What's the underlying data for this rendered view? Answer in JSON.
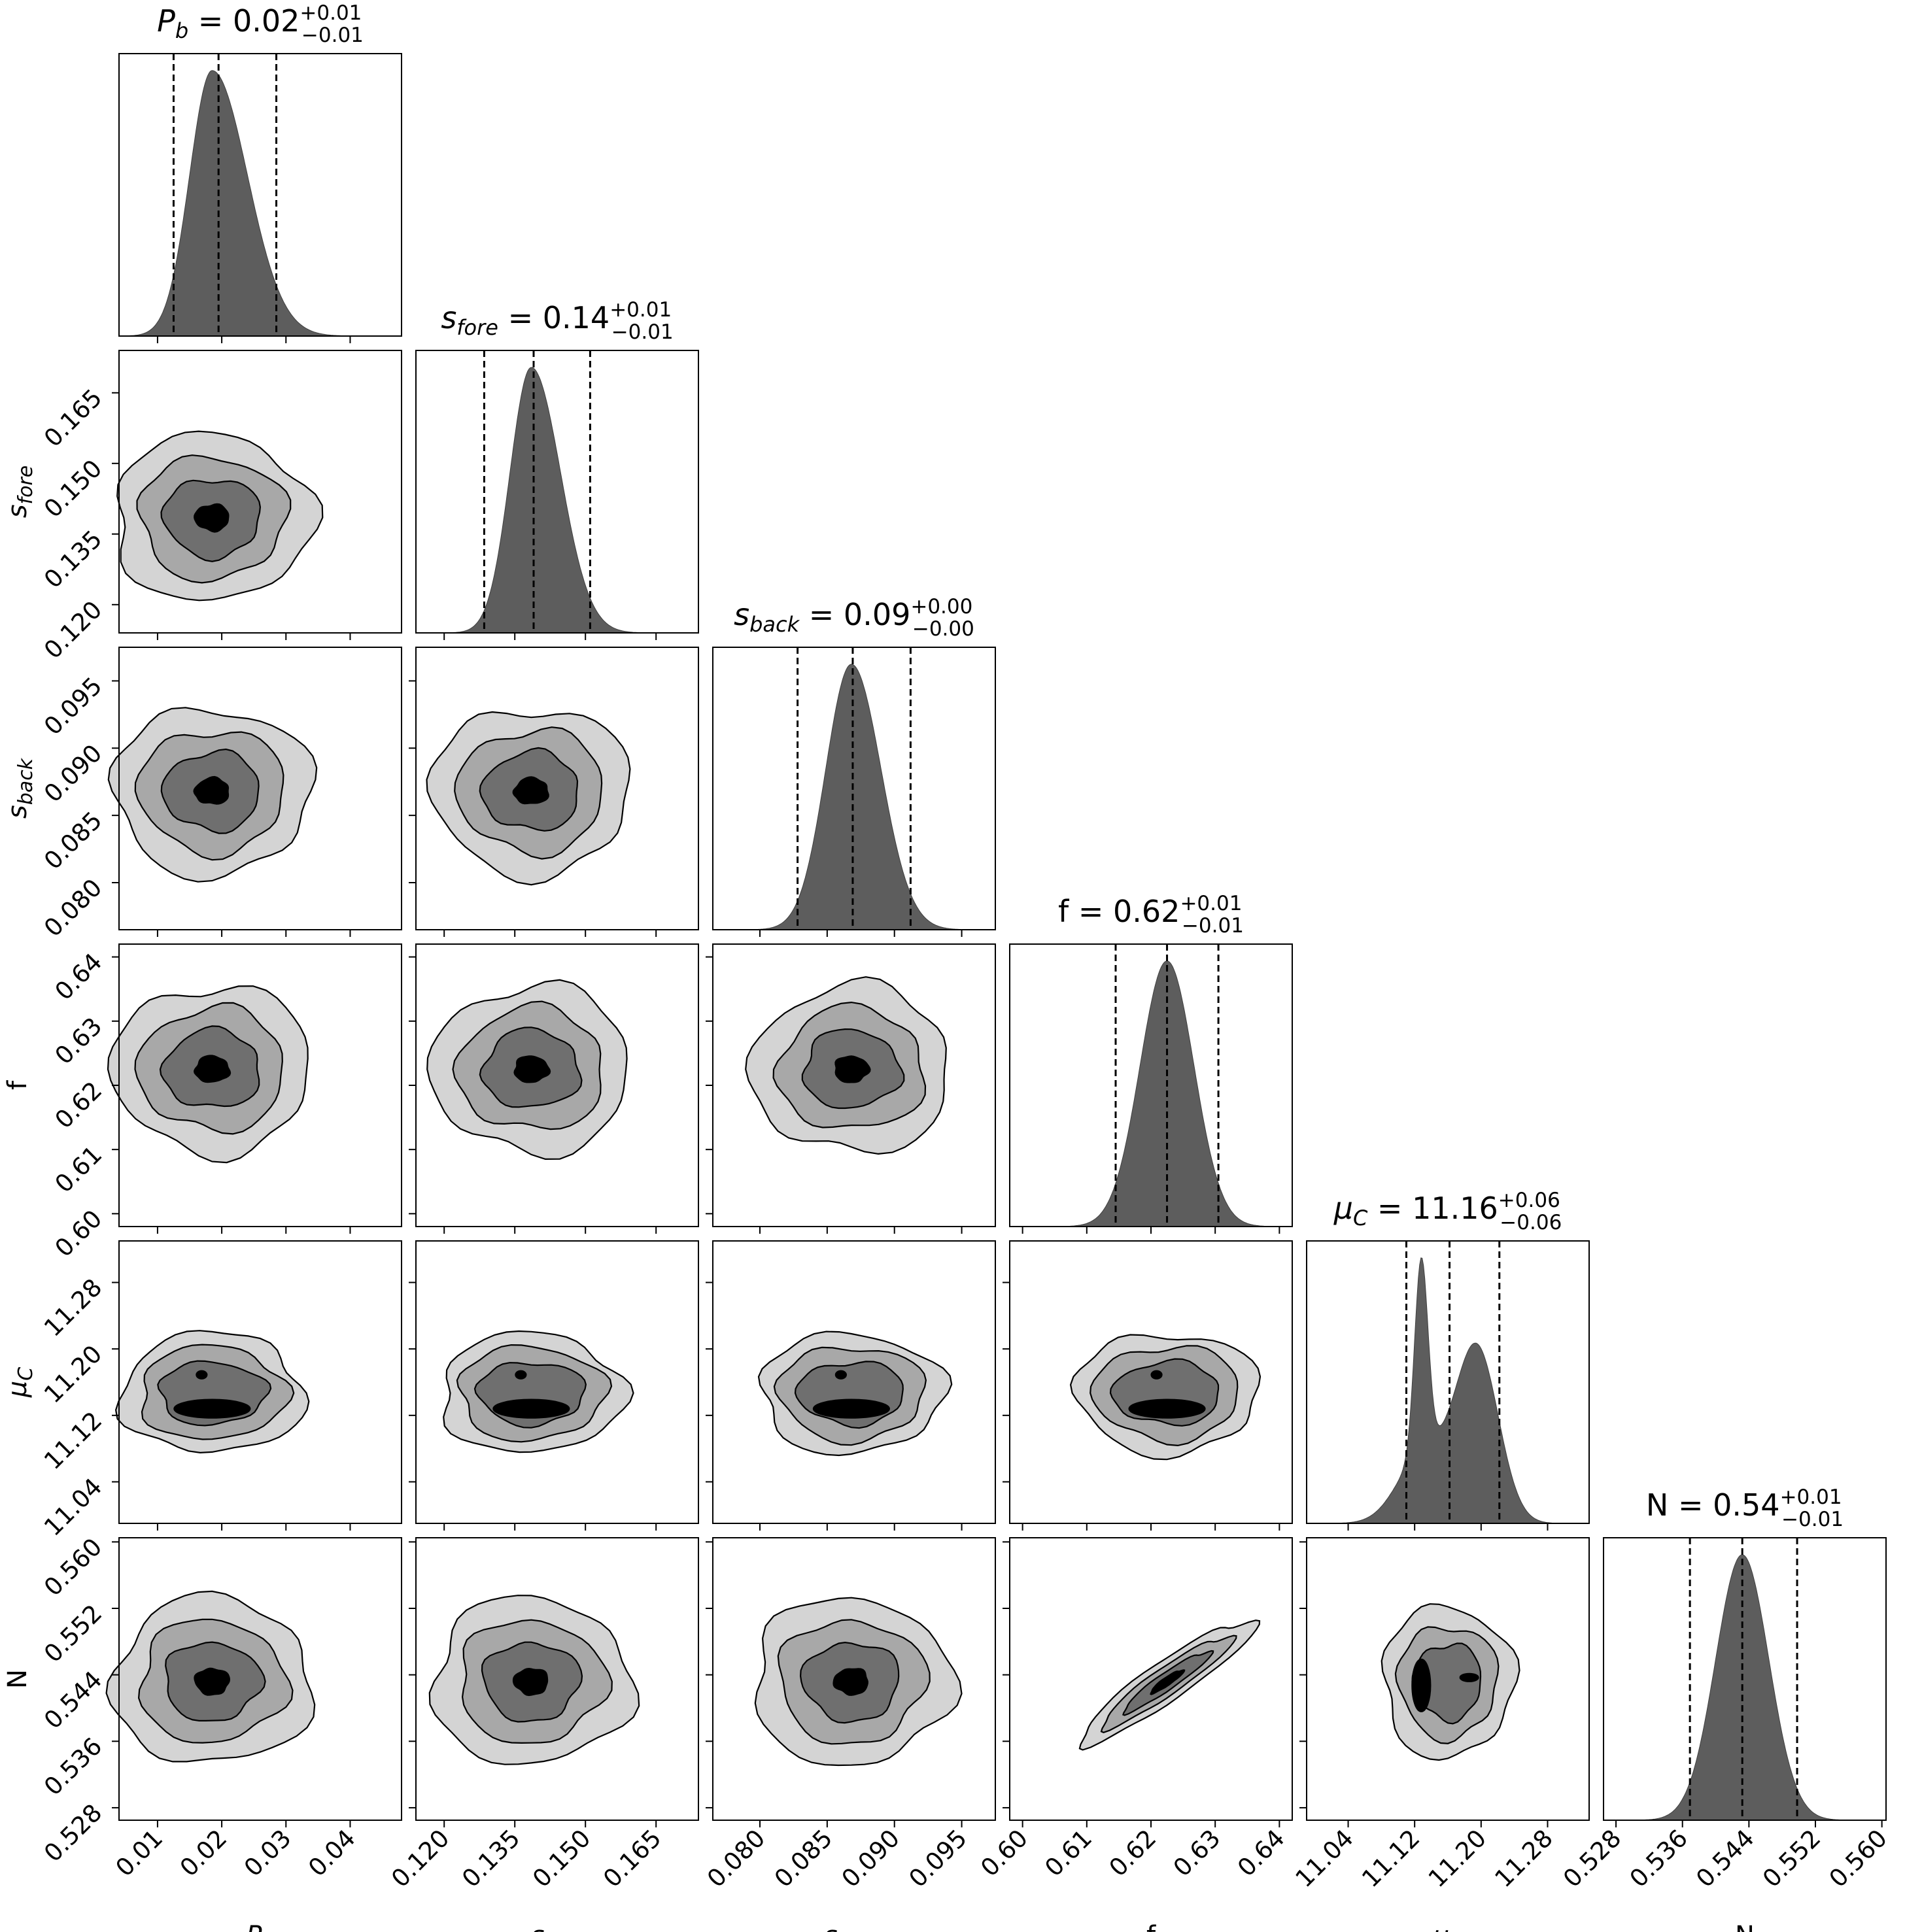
{
  "chart_data": {
    "type": "corner",
    "parameters": [
      {
        "key": "Pb",
        "label": {
          "base": "P",
          "sub": "b"
        },
        "median": 0.02,
        "err_plus": 0.01,
        "err_minus": 0.01,
        "title": {
          "base": "P",
          "sub": "b",
          "value": "0.02",
          "plus": "+0.01",
          "minus": "−0.01"
        },
        "range": [
          0.004,
          0.048
        ],
        "ticks": [
          0.01,
          0.02,
          0.03,
          0.04
        ],
        "tick_labels": [
          "0.01",
          "0.02",
          "0.03",
          "0.04"
        ],
        "quantiles": [
          0.0125,
          0.0195,
          0.0285
        ],
        "mode": 0.0185,
        "sigma_left": 0.0035,
        "sigma_right": 0.0055
      },
      {
        "key": "sfore",
        "label": {
          "base": "s",
          "sub": "fore"
        },
        "median": 0.14,
        "err_plus": 0.01,
        "err_minus": 0.01,
        "title": {
          "base": "s",
          "sub": "fore",
          "value": "0.14",
          "plus": "+0.01",
          "minus": "−0.01"
        },
        "range": [
          0.114,
          0.174
        ],
        "ticks": [
          0.12,
          0.135,
          0.15,
          0.165
        ],
        "tick_labels": [
          "0.120",
          "0.135",
          "0.150",
          "0.165"
        ],
        "quantiles": [
          0.1285,
          0.139,
          0.151
        ],
        "mode": 0.1385,
        "sigma_left": 0.0045,
        "sigma_right": 0.0062
      },
      {
        "key": "sback",
        "label": {
          "base": "s",
          "sub": "back"
        },
        "median": 0.09,
        "err_plus": 0.0,
        "err_minus": 0.0,
        "title": {
          "base": "s",
          "sub": "back",
          "value": "0.09",
          "plus": "+0.00",
          "minus": "−0.00"
        },
        "range": [
          0.0765,
          0.0975
        ],
        "ticks": [
          0.08,
          0.085,
          0.09,
          0.095
        ],
        "tick_labels": [
          "0.080",
          "0.085",
          "0.090",
          "0.095"
        ],
        "quantiles": [
          0.0828,
          0.0869,
          0.0912
        ],
        "mode": 0.0868,
        "sigma_left": 0.0019,
        "sigma_right": 0.0022
      },
      {
        "key": "f",
        "label": {
          "base": "f",
          "sub": ""
        },
        "median": 0.62,
        "err_plus": 0.01,
        "err_minus": 0.01,
        "title": {
          "base": "f",
          "sub": "",
          "value": "0.62",
          "plus": "+0.01",
          "minus": "−0.01"
        },
        "range": [
          0.598,
          0.642
        ],
        "ticks": [
          0.6,
          0.61,
          0.62,
          0.63,
          0.64
        ],
        "tick_labels": [
          "0.60",
          "0.61",
          "0.62",
          "0.63",
          "0.64"
        ],
        "quantiles": [
          0.6145,
          0.6225,
          0.6305
        ],
        "mode": 0.6225,
        "sigma_left": 0.0042,
        "sigma_right": 0.0042
      },
      {
        "key": "muC",
        "label": {
          "base": "μ",
          "sub": "C"
        },
        "median": 11.16,
        "err_plus": 0.06,
        "err_minus": 0.06,
        "title": {
          "base": "μ",
          "sub": "C",
          "value": "11.16",
          "plus": "+0.06",
          "minus": "−0.06"
        },
        "range": [
          10.99,
          11.33
        ],
        "ticks": [
          11.04,
          11.12,
          11.2,
          11.28
        ],
        "tick_labels": [
          "11.04",
          "11.12",
          "11.20",
          "11.28"
        ],
        "quantiles": [
          11.11,
          11.162,
          11.222
        ],
        "mode": 11.13,
        "sigma_left": 0.03,
        "sigma_right": 0.03
      },
      {
        "key": "N",
        "label": {
          "base": "N",
          "sub": ""
        },
        "median": 0.54,
        "err_plus": 0.01,
        "err_minus": 0.01,
        "title": {
          "base": "N",
          "sub": "",
          "value": "0.54",
          "plus": "+0.01",
          "minus": "−0.01"
        },
        "range": [
          0.5265,
          0.5605
        ],
        "ticks": [
          0.528,
          0.536,
          0.544,
          0.552,
          0.56
        ],
        "tick_labels": [
          "0.528",
          "0.536",
          "0.544",
          "0.552",
          "0.560"
        ],
        "quantiles": [
          0.5369,
          0.5432,
          0.5498
        ],
        "mode": 0.5432,
        "sigma_left": 0.0032,
        "sigma_right": 0.0032
      }
    ]
  }
}
